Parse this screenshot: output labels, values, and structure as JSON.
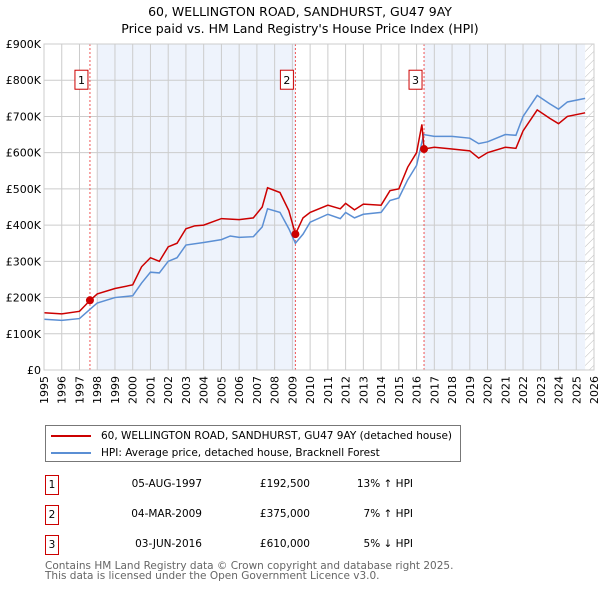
{
  "chart_data": {
    "type": "line",
    "title": "60, WELLINGTON ROAD, SANDHURST, GU47 9AY",
    "subtitle": "Price paid vs. HM Land Registry's House Price Index (HPI)",
    "xlim": [
      1995,
      2026
    ],
    "ylim": [
      0,
      900000
    ],
    "y_ticks": [
      "£0",
      "£100K",
      "£200K",
      "£300K",
      "£400K",
      "£500K",
      "£600K",
      "£700K",
      "£800K",
      "£900K"
    ],
    "x_ticks": [
      "1995",
      "1996",
      "1997",
      "1998",
      "1999",
      "2000",
      "2001",
      "2002",
      "2003",
      "2004",
      "2005",
      "2006",
      "2007",
      "2008",
      "2009",
      "2010",
      "2011",
      "2012",
      "2013",
      "2014",
      "2015",
      "2016",
      "2017",
      "2018",
      "2019",
      "2020",
      "2021",
      "2022",
      "2023",
      "2024",
      "2025",
      "2026"
    ],
    "grid": true,
    "series": [
      {
        "name": "60, WELLINGTON ROAD, SANDHURST, GU47 9AY (detached house)",
        "color": "#cc0000",
        "x": [
          1995,
          1996,
          1997,
          1997.6,
          1998,
          1999,
          2000,
          2000.5,
          2001,
          2001.5,
          2002,
          2002.5,
          2003,
          2003.5,
          2004,
          2005,
          2006,
          2006.8,
          2007.3,
          2007.6,
          2008.3,
          2008.8,
          2009.17,
          2009.6,
          2010,
          2011,
          2011.7,
          2012,
          2012.5,
          2013,
          2014,
          2014.5,
          2015,
          2015.5,
          2016,
          2016.3,
          2016.42,
          2017,
          2018,
          2019,
          2019.5,
          2020,
          2021,
          2021.6,
          2022,
          2022.8,
          2023.5,
          2024,
          2024.5,
          2025.5
        ],
        "y": [
          158,
          155,
          162,
          192.5,
          210,
          225,
          235,
          285,
          310,
          300,
          340,
          350,
          390,
          398,
          400,
          418,
          415,
          420,
          450,
          503,
          490,
          440,
          375,
          420,
          435,
          455,
          445,
          460,
          442,
          458,
          455,
          495,
          500,
          560,
          600,
          678,
          610,
          615,
          610,
          605,
          585,
          600,
          615,
          612,
          660,
          718,
          695,
          680,
          700,
          710
        ]
      },
      {
        "name": "HPI: Average price, detached house, Bracknell Forest",
        "color": "#5b8fd4",
        "x": [
          1995,
          1996,
          1997,
          1997.6,
          1998,
          1999,
          2000,
          2000.5,
          2001,
          2001.5,
          2002,
          2002.5,
          2003,
          2004,
          2005,
          2005.5,
          2006,
          2006.8,
          2007.3,
          2007.6,
          2008.3,
          2008.8,
          2009.17,
          2009.6,
          2010,
          2011,
          2011.7,
          2012,
          2012.5,
          2013,
          2014,
          2014.5,
          2015,
          2015.5,
          2016,
          2016.4,
          2017,
          2018,
          2019,
          2019.5,
          2020,
          2021,
          2021.6,
          2022,
          2022.8,
          2023.5,
          2024,
          2024.5,
          2025.5
        ],
        "y": [
          140,
          137,
          142,
          168,
          185,
          200,
          205,
          240,
          270,
          268,
          300,
          310,
          345,
          352,
          360,
          370,
          366,
          368,
          395,
          445,
          435,
          390,
          350,
          375,
          408,
          430,
          418,
          435,
          420,
          430,
          435,
          468,
          475,
          525,
          565,
          650,
          645,
          645,
          640,
          625,
          630,
          650,
          648,
          700,
          758,
          735,
          720,
          740,
          750
        ]
      }
    ],
    "y_units": "thousands GBP",
    "sales": [
      {
        "label": "1",
        "x": 1997.59,
        "y": 192.5
      },
      {
        "label": "2",
        "x": 2009.17,
        "y": 375
      },
      {
        "label": "3",
        "x": 2016.42,
        "y": 610
      }
    ],
    "shaded_ranges": [
      [
        1998,
        2009.17
      ],
      [
        2016.42,
        2025.5
      ]
    ],
    "forecast_hatch_from": 2025.5
  },
  "legend": {
    "property": "60, WELLINGTON ROAD, SANDHURST, GU47 9AY (detached house)",
    "hpi": "HPI: Average price, detached house, Bracknell Forest"
  },
  "transactions": [
    {
      "num": "1",
      "date": "05-AUG-1997",
      "price": "£192,500",
      "hpi": "13% ↑ HPI"
    },
    {
      "num": "2",
      "date": "04-MAR-2009",
      "price": "£375,000",
      "hpi": "7% ↑ HPI"
    },
    {
      "num": "3",
      "date": "03-JUN-2016",
      "price": "£610,000",
      "hpi": "5% ↓ HPI"
    }
  ],
  "footer": {
    "line1": "Contains HM Land Registry data © Crown copyright and database right 2025.",
    "line2": "This data is licensed under the Open Government Licence v3.0."
  }
}
